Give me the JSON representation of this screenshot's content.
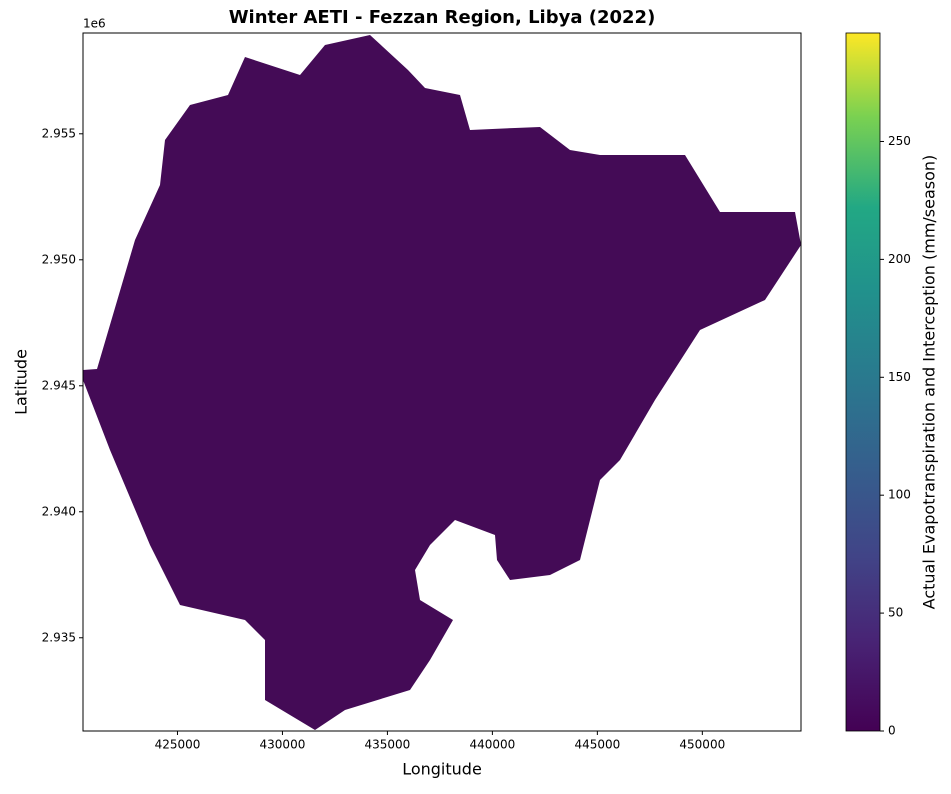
{
  "chart_data": {
    "type": "raster",
    "title": "Winter AETI - Fezzan Region, Libya (2022)",
    "x_label": "Longitude",
    "y_label": "Latitude",
    "y_offset_label": "1e6",
    "xlim": [
      420500,
      454700
    ],
    "xticks": [
      425000,
      430000,
      435000,
      440000,
      445000,
      450000
    ],
    "ylim": [
      2.9313,
      2.959
    ],
    "yticks": [
      2.935,
      {
        "value": 2.94,
        "label": "2.940"
      },
      2.945,
      {
        "value": 2.95,
        "label": "2.950"
      },
      2.955
    ],
    "colorbar": {
      "label": "Actual Evapotranspiration and Interception (mm/season)",
      "clim": [
        0,
        296
      ],
      "ticks": [
        0,
        50,
        100,
        150,
        200,
        250
      ],
      "colormap": "viridis"
    }
  }
}
